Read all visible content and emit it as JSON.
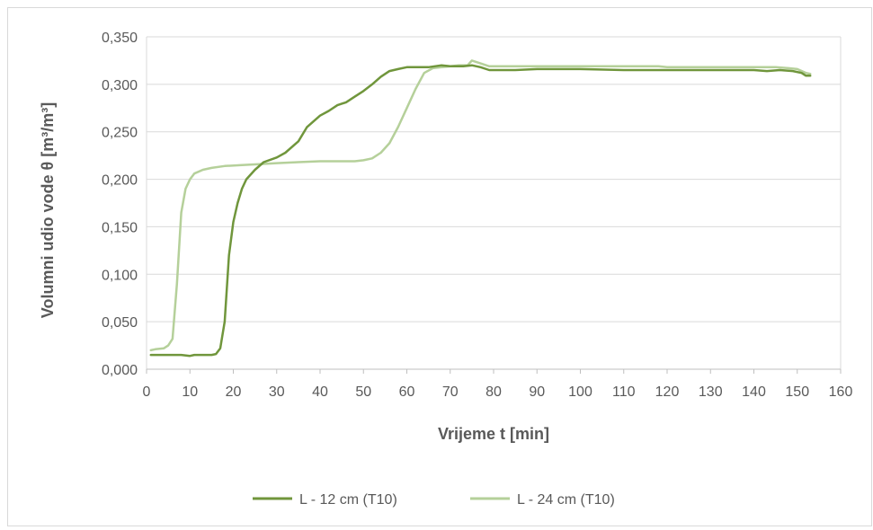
{
  "chart_data": {
    "type": "line",
    "title": "",
    "xlabel": "Vrijeme t [min]",
    "ylabel": "Volumni udio vode θ [m³/m³]",
    "xlim": [
      0,
      160
    ],
    "ylim": [
      0,
      0.35
    ],
    "x_ticks": [
      "0",
      "10",
      "20",
      "30",
      "40",
      "50",
      "60",
      "70",
      "80",
      "90",
      "100",
      "110",
      "120",
      "130",
      "140",
      "150",
      "160"
    ],
    "y_ticks": [
      "0,000",
      "0,050",
      "0,100",
      "0,150",
      "0,200",
      "0,250",
      "0,300",
      "0,350"
    ],
    "grid": "horizontal",
    "legend_position": "bottom",
    "series": [
      {
        "name": "L - 12 cm (T10)",
        "color": "#70963c",
        "points": [
          [
            1,
            0.015
          ],
          [
            5,
            0.015
          ],
          [
            8,
            0.015
          ],
          [
            10,
            0.014
          ],
          [
            11,
            0.015
          ],
          [
            15,
            0.015
          ],
          [
            16,
            0.016
          ],
          [
            17,
            0.022
          ],
          [
            18,
            0.05
          ],
          [
            19,
            0.12
          ],
          [
            20,
            0.155
          ],
          [
            21,
            0.175
          ],
          [
            22,
            0.19
          ],
          [
            23,
            0.2
          ],
          [
            25,
            0.21
          ],
          [
            27,
            0.218
          ],
          [
            30,
            0.223
          ],
          [
            32,
            0.228
          ],
          [
            35,
            0.24
          ],
          [
            37,
            0.255
          ],
          [
            40,
            0.267
          ],
          [
            42,
            0.272
          ],
          [
            44,
            0.278
          ],
          [
            46,
            0.281
          ],
          [
            48,
            0.287
          ],
          [
            50,
            0.293
          ],
          [
            52,
            0.3
          ],
          [
            54,
            0.308
          ],
          [
            56,
            0.314
          ],
          [
            58,
            0.316
          ],
          [
            60,
            0.318
          ],
          [
            65,
            0.318
          ],
          [
            68,
            0.32
          ],
          [
            70,
            0.319
          ],
          [
            73,
            0.319
          ],
          [
            75,
            0.32
          ],
          [
            77,
            0.318
          ],
          [
            79,
            0.315
          ],
          [
            82,
            0.315
          ],
          [
            85,
            0.315
          ],
          [
            90,
            0.316
          ],
          [
            100,
            0.316
          ],
          [
            110,
            0.315
          ],
          [
            120,
            0.315
          ],
          [
            130,
            0.315
          ],
          [
            140,
            0.315
          ],
          [
            143,
            0.314
          ],
          [
            146,
            0.315
          ],
          [
            149,
            0.314
          ],
          [
            151,
            0.312
          ],
          [
            152,
            0.309
          ],
          [
            153,
            0.309
          ]
        ]
      },
      {
        "name": "L - 24 cm (T10)",
        "color": "#b5d09a",
        "points": [
          [
            1,
            0.02
          ],
          [
            2,
            0.021
          ],
          [
            4,
            0.022
          ],
          [
            5,
            0.025
          ],
          [
            6,
            0.032
          ],
          [
            7,
            0.09
          ],
          [
            8,
            0.165
          ],
          [
            9,
            0.19
          ],
          [
            10,
            0.2
          ],
          [
            11,
            0.206
          ],
          [
            13,
            0.21
          ],
          [
            15,
            0.212
          ],
          [
            18,
            0.214
          ],
          [
            22,
            0.215
          ],
          [
            26,
            0.216
          ],
          [
            30,
            0.217
          ],
          [
            35,
            0.218
          ],
          [
            40,
            0.219
          ],
          [
            45,
            0.219
          ],
          [
            48,
            0.219
          ],
          [
            50,
            0.22
          ],
          [
            52,
            0.222
          ],
          [
            54,
            0.228
          ],
          [
            56,
            0.238
          ],
          [
            58,
            0.255
          ],
          [
            60,
            0.275
          ],
          [
            62,
            0.295
          ],
          [
            64,
            0.312
          ],
          [
            66,
            0.317
          ],
          [
            68,
            0.318
          ],
          [
            70,
            0.319
          ],
          [
            72,
            0.32
          ],
          [
            74,
            0.32
          ],
          [
            75,
            0.325
          ],
          [
            77,
            0.322
          ],
          [
            79,
            0.319
          ],
          [
            82,
            0.319
          ],
          [
            90,
            0.319
          ],
          [
            100,
            0.319
          ],
          [
            110,
            0.319
          ],
          [
            118,
            0.319
          ],
          [
            120,
            0.318
          ],
          [
            130,
            0.318
          ],
          [
            140,
            0.318
          ],
          [
            145,
            0.318
          ],
          [
            148,
            0.317
          ],
          [
            150,
            0.316
          ],
          [
            152,
            0.312
          ],
          [
            153,
            0.311
          ]
        ]
      }
    ]
  }
}
